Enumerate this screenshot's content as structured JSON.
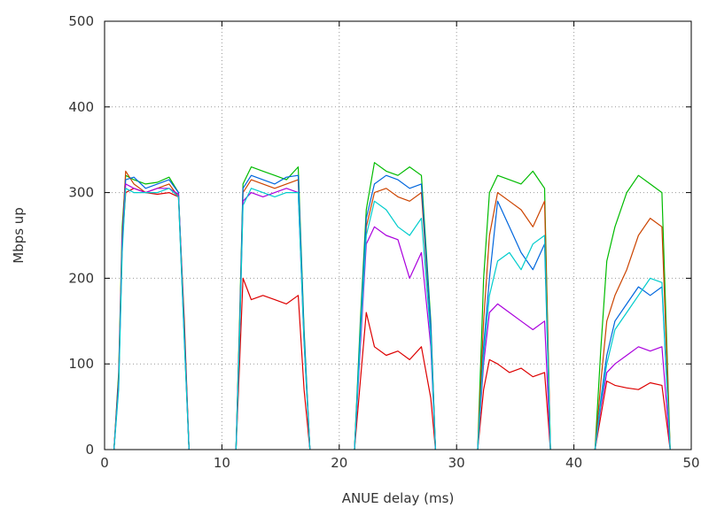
{
  "chart_data": {
    "type": "line",
    "title": "",
    "xlabel": "ANUE delay (ms)",
    "ylabel": "Mbps up",
    "xlim": [
      0,
      50
    ],
    "ylim": [
      0,
      500
    ],
    "x_ticks": [
      0,
      10,
      20,
      30,
      40,
      50
    ],
    "y_ticks": [
      0,
      100,
      200,
      300,
      400,
      500
    ],
    "x_tick_labels": [
      "0",
      "10",
      "20",
      "30",
      "40",
      "50"
    ],
    "y_tick_labels": [
      "0",
      "100",
      "200",
      "300",
      "400",
      "500"
    ],
    "grid": true,
    "legend": "none",
    "series": [
      {
        "color": "#dd0000",
        "groups": [
          {
            "x": [
              0.8,
              1.2,
              1.5,
              1.8,
              2.5,
              3.5,
              4.5,
              5.5,
              6.3,
              6.8,
              7.2
            ],
            "y": [
              0,
              80,
              240,
              300,
              305,
              300,
              298,
              300,
              295,
              150,
              0
            ]
          },
          {
            "x": [
              11.2,
              11.5,
              11.8,
              12.5,
              13.5,
              14.5,
              15.5,
              16.5,
              17.0,
              17.5
            ],
            "y": [
              0,
              100,
              200,
              175,
              180,
              175,
              170,
              180,
              70,
              0
            ]
          },
          {
            "x": [
              21.3,
              21.8,
              22.3,
              23,
              24,
              25,
              26,
              27,
              27.8,
              28.2
            ],
            "y": [
              0,
              80,
              160,
              120,
              110,
              115,
              105,
              120,
              60,
              0
            ]
          },
          {
            "x": [
              31.8,
              32.3,
              32.8,
              33.5,
              34.5,
              35.5,
              36.5,
              37.5,
              38.0
            ],
            "y": [
              0,
              70,
              105,
              100,
              90,
              95,
              85,
              90,
              0
            ]
          },
          {
            "x": [
              41.8,
              42.3,
              42.8,
              43.5,
              44.5,
              45.5,
              46.5,
              47.5,
              48.2
            ],
            "y": [
              0,
              40,
              80,
              75,
              72,
              70,
              78,
              75,
              0
            ]
          }
        ]
      },
      {
        "color": "#00bb00",
        "groups": [
          {
            "x": [
              0.8,
              1.2,
              1.5,
              1.8,
              2.5,
              3.5,
              4.5,
              5.5,
              6.3,
              6.8,
              7.2
            ],
            "y": [
              0,
              90,
              260,
              320,
              315,
              310,
              312,
              318,
              300,
              140,
              0
            ]
          },
          {
            "x": [
              11.2,
              11.5,
              11.8,
              12.5,
              13.5,
              14.5,
              15.5,
              16.5,
              17.0,
              17.5
            ],
            "y": [
              0,
              150,
              310,
              330,
              325,
              320,
              315,
              330,
              140,
              0
            ]
          },
          {
            "x": [
              21.3,
              21.8,
              22.3,
              23,
              24,
              25,
              26,
              27,
              27.8,
              28.2
            ],
            "y": [
              0,
              150,
              280,
              335,
              325,
              320,
              330,
              320,
              150,
              0
            ]
          },
          {
            "x": [
              31.8,
              32.3,
              32.8,
              33.5,
              34.5,
              35.5,
              36.5,
              37.5,
              38.0
            ],
            "y": [
              0,
              200,
              300,
              320,
              315,
              310,
              325,
              305,
              0
            ]
          },
          {
            "x": [
              41.8,
              42.3,
              42.8,
              43.5,
              44.5,
              45.5,
              46.5,
              47.5,
              48.2
            ],
            "y": [
              0,
              120,
              220,
              260,
              300,
              320,
              310,
              300,
              0
            ]
          }
        ]
      },
      {
        "color": "#cc4400",
        "groups": [
          {
            "x": [
              0.8,
              1.2,
              1.5,
              1.8,
              2.5,
              3.5,
              4.5,
              5.5,
              6.3,
              6.8,
              7.2
            ],
            "y": [
              0,
              85,
              250,
              325,
              310,
              300,
              305,
              310,
              295,
              130,
              0
            ]
          },
          {
            "x": [
              11.2,
              11.5,
              11.8,
              12.5,
              13.5,
              14.5,
              15.5,
              16.5,
              17.0,
              17.5
            ],
            "y": [
              0,
              140,
              300,
              315,
              310,
              305,
              310,
              315,
              130,
              0
            ]
          },
          {
            "x": [
              21.3,
              21.8,
              22.3,
              23,
              24,
              25,
              26,
              27,
              27.8,
              28.2
            ],
            "y": [
              0,
              130,
              260,
              300,
              305,
              295,
              290,
              300,
              140,
              0
            ]
          },
          {
            "x": [
              31.8,
              32.3,
              32.8,
              33.5,
              34.5,
              35.5,
              36.5,
              37.5,
              38.0
            ],
            "y": [
              0,
              150,
              250,
              300,
              290,
              280,
              260,
              290,
              0
            ]
          },
          {
            "x": [
              41.8,
              42.3,
              42.8,
              43.5,
              44.5,
              45.5,
              46.5,
              47.5,
              48.2
            ],
            "y": [
              0,
              80,
              150,
              180,
              210,
              250,
              270,
              260,
              0
            ]
          }
        ]
      },
      {
        "color": "#0066dd",
        "groups": [
          {
            "x": [
              0.8,
              1.2,
              1.5,
              1.8,
              2.5,
              3.5,
              4.5,
              5.5,
              6.3,
              6.8,
              7.2
            ],
            "y": [
              0,
              80,
              245,
              315,
              318,
              305,
              310,
              315,
              300,
              135,
              0
            ]
          },
          {
            "x": [
              11.2,
              11.5,
              11.8,
              12.5,
              13.5,
              14.5,
              15.5,
              16.5,
              17.0,
              17.5
            ],
            "y": [
              0,
              140,
              305,
              320,
              315,
              310,
              318,
              320,
              135,
              0
            ]
          },
          {
            "x": [
              21.3,
              21.8,
              22.3,
              23,
              24,
              25,
              26,
              27,
              27.8,
              28.2
            ],
            "y": [
              0,
              140,
              270,
              310,
              320,
              315,
              305,
              310,
              145,
              0
            ]
          },
          {
            "x": [
              31.8,
              32.3,
              32.8,
              33.5,
              34.5,
              35.5,
              36.5,
              37.5,
              38.0
            ],
            "y": [
              0,
              120,
              200,
              290,
              260,
              230,
              210,
              240,
              0
            ]
          },
          {
            "x": [
              41.8,
              42.3,
              42.8,
              43.5,
              44.5,
              45.5,
              46.5,
              47.5,
              48.2
            ],
            "y": [
              0,
              60,
              110,
              150,
              170,
              190,
              180,
              190,
              0
            ]
          }
        ]
      },
      {
        "color": "#aa00dd",
        "groups": [
          {
            "x": [
              0.8,
              1.2,
              1.5,
              1.8,
              2.5,
              3.5,
              4.5,
              5.5,
              6.3,
              6.8,
              7.2
            ],
            "y": [
              0,
              75,
              240,
              310,
              305,
              300,
              305,
              305,
              298,
              130,
              0
            ]
          },
          {
            "x": [
              11.2,
              11.5,
              11.8,
              12.5,
              13.5,
              14.5,
              15.5,
              16.5,
              17.0,
              17.5
            ],
            "y": [
              0,
              130,
              290,
              300,
              295,
              300,
              305,
              300,
              125,
              0
            ]
          },
          {
            "x": [
              21.3,
              21.8,
              22.3,
              23,
              24,
              25,
              26,
              27,
              27.8,
              28.2
            ],
            "y": [
              0,
              120,
              240,
              260,
              250,
              245,
              200,
              230,
              120,
              0
            ]
          },
          {
            "x": [
              31.8,
              32.3,
              32.8,
              33.5,
              34.5,
              35.5,
              36.5,
              37.5,
              38.0
            ],
            "y": [
              0,
              100,
              160,
              170,
              160,
              150,
              140,
              150,
              0
            ]
          },
          {
            "x": [
              41.8,
              42.3,
              42.8,
              43.5,
              44.5,
              45.5,
              46.5,
              47.5,
              48.2
            ],
            "y": [
              0,
              50,
              90,
              100,
              110,
              120,
              115,
              120,
              0
            ]
          }
        ]
      },
      {
        "color": "#00cccc",
        "groups": [
          {
            "x": [
              0.8,
              1.2,
              1.5,
              1.8,
              2.5,
              3.5,
              4.5,
              5.5,
              6.3,
              6.8,
              7.2
            ],
            "y": [
              0,
              70,
              230,
              305,
              300,
              300,
              300,
              305,
              295,
              125,
              0
            ]
          },
          {
            "x": [
              11.2,
              11.5,
              11.8,
              12.5,
              13.5,
              14.5,
              15.5,
              16.5,
              17.0,
              17.5
            ],
            "y": [
              0,
              130,
              285,
              305,
              300,
              295,
              300,
              300,
              125,
              0
            ]
          },
          {
            "x": [
              21.3,
              21.8,
              22.3,
              23,
              24,
              25,
              26,
              27,
              27.8,
              28.2
            ],
            "y": [
              0,
              130,
              250,
              290,
              280,
              260,
              250,
              270,
              130,
              0
            ]
          },
          {
            "x": [
              31.8,
              32.3,
              32.8,
              33.5,
              34.5,
              35.5,
              36.5,
              37.5,
              38.0
            ],
            "y": [
              0,
              110,
              180,
              220,
              230,
              210,
              240,
              250,
              0
            ]
          },
          {
            "x": [
              41.8,
              42.3,
              42.8,
              43.5,
              44.5,
              45.5,
              46.5,
              47.5,
              48.2
            ],
            "y": [
              0,
              55,
              100,
              140,
              160,
              180,
              200,
              195,
              0
            ]
          }
        ]
      }
    ]
  }
}
